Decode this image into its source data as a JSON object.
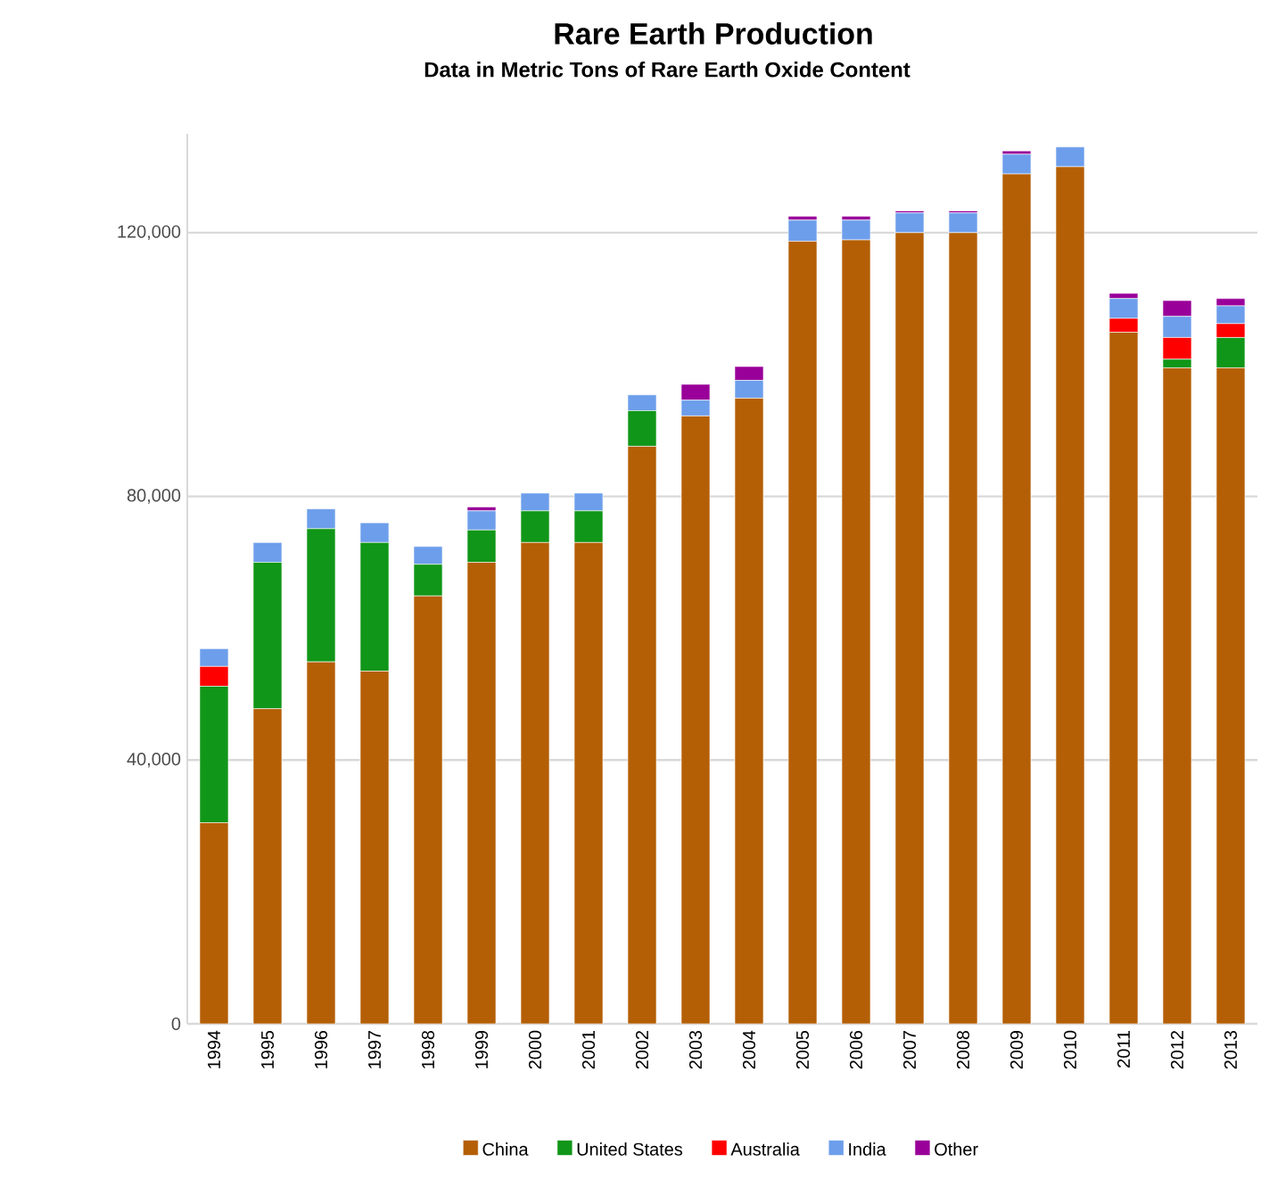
{
  "chart_data": {
    "type": "bar",
    "stacked": true,
    "title": "Rare Earth Production",
    "subtitle": "Data in Metric Tons of Rare Earth Oxide Content",
    "categories": [
      "1994",
      "1995",
      "1996",
      "1997",
      "1998",
      "1999",
      "2000",
      "2001",
      "2002",
      "2003",
      "2004",
      "2005",
      "2006",
      "2007",
      "2008",
      "2009",
      "2010",
      "2011",
      "2012",
      "2013"
    ],
    "series": [
      {
        "name": "China",
        "color": "#b45f06",
        "values": [
          30500,
          47800,
          54900,
          53500,
          64900,
          70000,
          73000,
          73000,
          87600,
          92200,
          94900,
          118700,
          118900,
          120000,
          120000,
          128900,
          130000,
          104900,
          99500,
          99500
        ]
      },
      {
        "name": "United States",
        "color": "#109618",
        "values": [
          20700,
          22200,
          20200,
          19500,
          4800,
          4900,
          4800,
          4800,
          5400,
          0,
          0,
          0,
          0,
          0,
          0,
          0,
          0,
          0,
          1300,
          4600
        ]
      },
      {
        "name": "Australia",
        "color": "#ff0000",
        "values": [
          3000,
          0,
          0,
          0,
          0,
          0,
          0,
          0,
          0,
          0,
          0,
          0,
          0,
          0,
          0,
          0,
          0,
          2100,
          3300,
          2100
        ]
      },
      {
        "name": "India",
        "color": "#6d9eeb",
        "values": [
          2700,
          3000,
          3000,
          3000,
          2700,
          2900,
          2700,
          2700,
          2400,
          2400,
          2700,
          3200,
          3000,
          3000,
          3000,
          3000,
          3000,
          3000,
          3200,
          2700
        ]
      },
      {
        "name": "Other",
        "color": "#990099",
        "values": [
          0,
          0,
          0,
          0,
          0,
          600,
          0,
          0,
          0,
          2400,
          2100,
          600,
          600,
          300,
          300,
          500,
          0,
          800,
          2400,
          1100
        ]
      }
    ],
    "ylim": [
      0,
      135000
    ],
    "yticks": [
      {
        "value": 0,
        "label": "0"
      },
      {
        "value": 40000,
        "label": "40,000"
      },
      {
        "value": 80000,
        "label": "80,000"
      },
      {
        "value": 120000,
        "label": "120,000"
      }
    ],
    "grid": "y",
    "legend": "bottom"
  }
}
